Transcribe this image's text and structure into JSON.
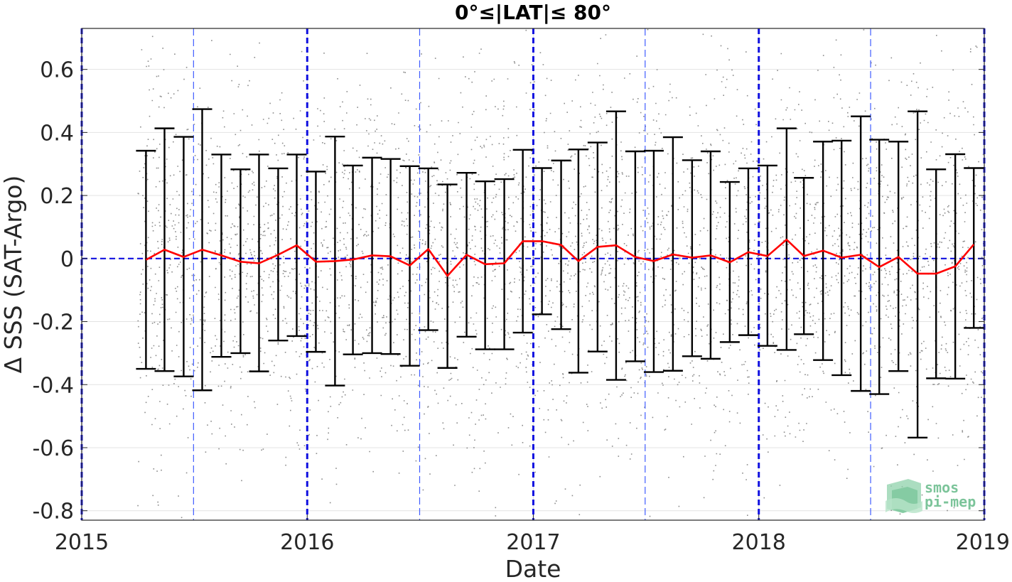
{
  "chart_data": {
    "type": "scatter",
    "title": "0°≤|LAT|≤ 80°",
    "xlabel": "Date",
    "ylabel": "Δ SSS (SAT-Argo)",
    "xlim": [
      "2015-01-01",
      "2019-01-01"
    ],
    "ylim": [
      -0.83,
      0.73
    ],
    "x_ticks": [
      {
        "date": "2015-01-01",
        "label": "2015"
      },
      {
        "date": "2016-01-01",
        "label": "2016"
      },
      {
        "date": "2017-01-01",
        "label": "2017"
      },
      {
        "date": "2018-01-01",
        "label": "2018"
      },
      {
        "date": "2019-01-01",
        "label": "2019"
      }
    ],
    "y_ticks": [
      {
        "value": 0.6,
        "label": "0.6"
      },
      {
        "value": 0.4,
        "label": "0.4"
      },
      {
        "value": 0.2,
        "label": "0.2"
      },
      {
        "value": 0,
        "label": "0"
      },
      {
        "value": -0.2,
        "label": "-0.2"
      },
      {
        "value": -0.4,
        "label": "-0.4"
      },
      {
        "value": -0.6,
        "label": "-0.6"
      },
      {
        "value": -0.8,
        "label": "-0.8"
      }
    ],
    "grid": true,
    "year_boundaries": [
      "2015-01-01",
      "2016-01-01",
      "2017-01-01",
      "2018-01-01",
      "2019-01-01"
    ],
    "mid_year_lines": [
      "2015-07-01",
      "2016-07-01",
      "2017-07-01",
      "2018-07-01"
    ],
    "zero_line": 0,
    "scatter": {
      "description_color": "#7f7f7f",
      "center_mean": 0.0,
      "spread_std": 0.3,
      "date_range": [
        "2015-04-01",
        "2019-01-01"
      ]
    },
    "series": [
      {
        "kind": "monthly_mean_with_std",
        "dates": [
          "2015-04-15",
          "2015-05-15",
          "2015-06-15",
          "2015-07-15",
          "2015-08-15",
          "2015-09-15",
          "2015-10-15",
          "2015-11-15",
          "2015-12-15",
          "2016-01-15",
          "2016-02-15",
          "2016-03-15",
          "2016-04-15",
          "2016-05-15",
          "2016-06-15",
          "2016-07-15",
          "2016-08-15",
          "2016-09-15",
          "2016-10-15",
          "2016-11-15",
          "2016-12-15",
          "2017-01-15",
          "2017-02-15",
          "2017-03-15",
          "2017-04-15",
          "2017-05-15",
          "2017-06-15",
          "2017-07-15",
          "2017-08-15",
          "2017-09-15",
          "2017-10-15",
          "2017-11-15",
          "2017-12-15",
          "2018-01-15",
          "2018-02-15",
          "2018-03-15",
          "2018-04-15",
          "2018-05-15",
          "2018-06-15",
          "2018-07-15",
          "2018-08-15",
          "2018-09-15",
          "2018-10-15",
          "2018-11-15",
          "2018-12-15"
        ],
        "mean": [
          -0.004,
          0.028,
          0.005,
          0.028,
          0.01,
          -0.01,
          -0.015,
          0.012,
          0.042,
          -0.01,
          -0.008,
          -0.003,
          0.01,
          0.007,
          -0.022,
          0.03,
          -0.055,
          0.012,
          -0.018,
          -0.015,
          0.055,
          0.055,
          0.043,
          -0.008,
          0.037,
          0.042,
          0.005,
          -0.008,
          0.013,
          0.003,
          0.01,
          -0.012,
          0.02,
          0.008,
          0.06,
          0.008,
          0.025,
          0.003,
          0.012,
          -0.027,
          0.005,
          -0.048,
          -0.048,
          -0.025,
          0.045
        ],
        "upper": [
          0.342,
          0.413,
          0.386,
          0.474,
          0.33,
          0.283,
          0.33,
          0.286,
          0.33,
          0.276,
          0.387,
          0.295,
          0.32,
          0.316,
          0.293,
          0.286,
          0.235,
          0.272,
          0.245,
          0.252,
          0.345,
          0.287,
          0.311,
          0.346,
          0.368,
          0.467,
          0.34,
          0.342,
          0.385,
          0.312,
          0.34,
          0.243,
          0.286,
          0.295,
          0.413,
          0.256,
          0.371,
          0.374,
          0.451,
          0.377,
          0.371,
          0.467,
          0.283,
          0.331,
          0.287
        ],
        "lower": [
          -0.35,
          -0.357,
          -0.374,
          -0.418,
          -0.312,
          -0.3,
          -0.358,
          -0.26,
          -0.246,
          -0.296,
          -0.403,
          -0.304,
          -0.3,
          -0.303,
          -0.34,
          -0.227,
          -0.347,
          -0.248,
          -0.288,
          -0.288,
          -0.235,
          -0.177,
          -0.224,
          -0.362,
          -0.295,
          -0.385,
          -0.326,
          -0.36,
          -0.356,
          -0.31,
          -0.318,
          -0.265,
          -0.243,
          -0.277,
          -0.29,
          -0.24,
          -0.322,
          -0.37,
          -0.42,
          -0.43,
          -0.357,
          -0.568,
          -0.38,
          -0.381,
          -0.22
        ]
      }
    ]
  },
  "logo": {
    "line1": "smos",
    "line2": "pi-mep",
    "color": "#7cc49a"
  }
}
